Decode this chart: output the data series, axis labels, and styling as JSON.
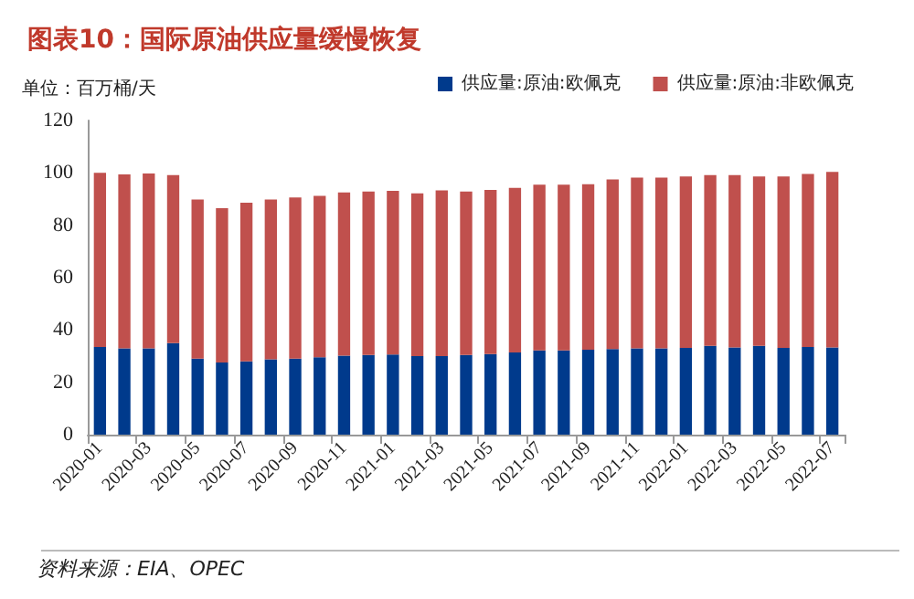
{
  "chart_data": {
    "type": "bar",
    "title": "图表10：国际原油供应量缓慢恢复",
    "ylabel": "单位：百万桶/天",
    "categories": [
      "2020-01",
      null,
      "2020-03",
      null,
      "2020-05",
      null,
      "2020-07",
      null,
      "2020-09",
      null,
      "2020-11",
      null,
      "2021-01",
      null,
      "2021-03",
      null,
      "2021-05",
      null,
      "2021-07",
      null,
      "2021-09",
      null,
      "2021-11",
      null,
      "2022-01",
      null,
      "2022-03",
      null,
      "2022-05",
      null,
      "2022-07"
    ],
    "series": [
      {
        "name": "供应量:原油:欧佩克",
        "color": "#003a8c",
        "values": [
          33.5,
          33,
          33,
          35,
          29,
          27.6,
          28,
          28.8,
          29,
          29.6,
          30.2,
          30.4,
          30.6,
          30,
          30,
          30.4,
          30.8,
          31.4,
          32.2,
          32.2,
          32.4,
          32.7,
          33,
          33,
          33.1,
          33.9,
          33.3,
          33.9,
          33.1,
          33.5,
          33.3
        ]
      },
      {
        "name": "供应量:原油:非欧佩克",
        "color": "#c0504d",
        "values": [
          66.5,
          66.4,
          66.8,
          64.2,
          60.8,
          58.9,
          60.6,
          61,
          61.6,
          61.6,
          62.3,
          62.5,
          62.5,
          62.2,
          63.3,
          62.5,
          62.7,
          62.9,
          63.3,
          63.3,
          63.3,
          64.8,
          65.2,
          65.2,
          65.5,
          65.3,
          65.9,
          64.7,
          65.5,
          66.1,
          67.1
        ]
      }
    ],
    "stacked": true,
    "ylim": [
      0,
      120
    ],
    "yticks": [
      0,
      20,
      40,
      60,
      80,
      100,
      120
    ],
    "grid": false,
    "legend": "top right",
    "annotations": [
      "资料来源：EIA、OPEC"
    ]
  }
}
